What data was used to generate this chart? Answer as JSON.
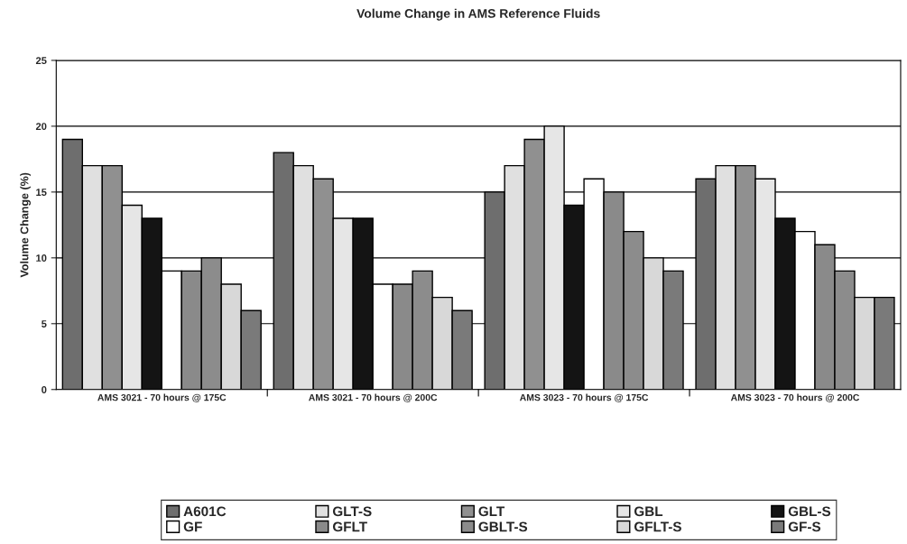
{
  "chart_data": {
    "type": "bar",
    "title": "Volume Change in AMS Reference Fluids",
    "ylabel": "Volume Change (%)",
    "categories": [
      "AMS 3021 - 70 hours @ 175C",
      "AMS 3021 - 70 hours @ 200C",
      "AMS 3023 - 70 hours @ 175C",
      "AMS 3023 - 70 hours @ 200C"
    ],
    "series": [
      {
        "name": "A601C",
        "color": "#6e6e6e",
        "values": [
          19,
          18,
          15,
          16
        ]
      },
      {
        "name": "GLT-S",
        "color": "#e0e0e0",
        "values": [
          17,
          17,
          17,
          17
        ]
      },
      {
        "name": "GLT",
        "color": "#909090",
        "values": [
          17,
          16,
          19,
          17
        ]
      },
      {
        "name": "GBL",
        "color": "#e6e6e6",
        "values": [
          14,
          13,
          20,
          16
        ]
      },
      {
        "name": "GBL-S",
        "color": "#141414",
        "values": [
          13,
          13,
          14,
          13
        ]
      },
      {
        "name": "GF",
        "color": "#ffffff",
        "values": [
          9,
          8,
          16,
          12
        ]
      },
      {
        "name": "GFLT",
        "color": "#8a8a8a",
        "values": [
          9,
          8,
          15,
          11
        ]
      },
      {
        "name": "GBLT-S",
        "color": "#8c8c8c",
        "values": [
          10,
          9,
          12,
          9
        ]
      },
      {
        "name": "GFLT-S",
        "color": "#d8d8d8",
        "values": [
          8,
          7,
          10,
          7
        ]
      },
      {
        "name": "GF-S",
        "color": "#7a7a7a",
        "values": [
          6,
          6,
          9,
          7
        ]
      }
    ],
    "ylim": [
      0,
      25
    ],
    "yticks": [
      0,
      5,
      10,
      15,
      20,
      25
    ],
    "grid": "y",
    "legend": "bottom"
  }
}
